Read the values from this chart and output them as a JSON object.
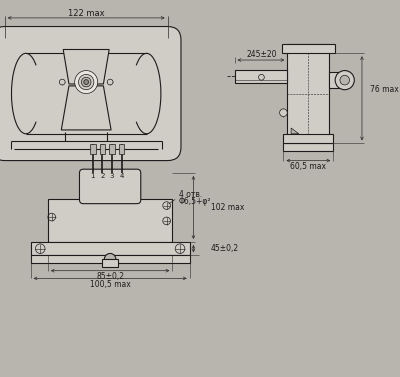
{
  "bg_color": "#b8b4ae",
  "line_color": "#1c1c1c",
  "dim_color": "#2a2a2a",
  "fill_light": "#d0ccc6",
  "fill_mid": "#b8b4ae",
  "fill_dark": "#8a8680",
  "fill_white": "#e8e4de",
  "annotations": {
    "122_max": "122 max",
    "245_20": "245±20",
    "76_max": "76 max",
    "60_5_max": "60,5 max",
    "4_otv": "4 отв.",
    "phi_6_5": "Φ6,5+φ²",
    "102_max": "102 max",
    "45_02": "45±0,2",
    "85_02": "85±0,2",
    "100_5_max": "100,5 max",
    "pins": [
      "4",
      "3",
      "2",
      "1"
    ]
  }
}
